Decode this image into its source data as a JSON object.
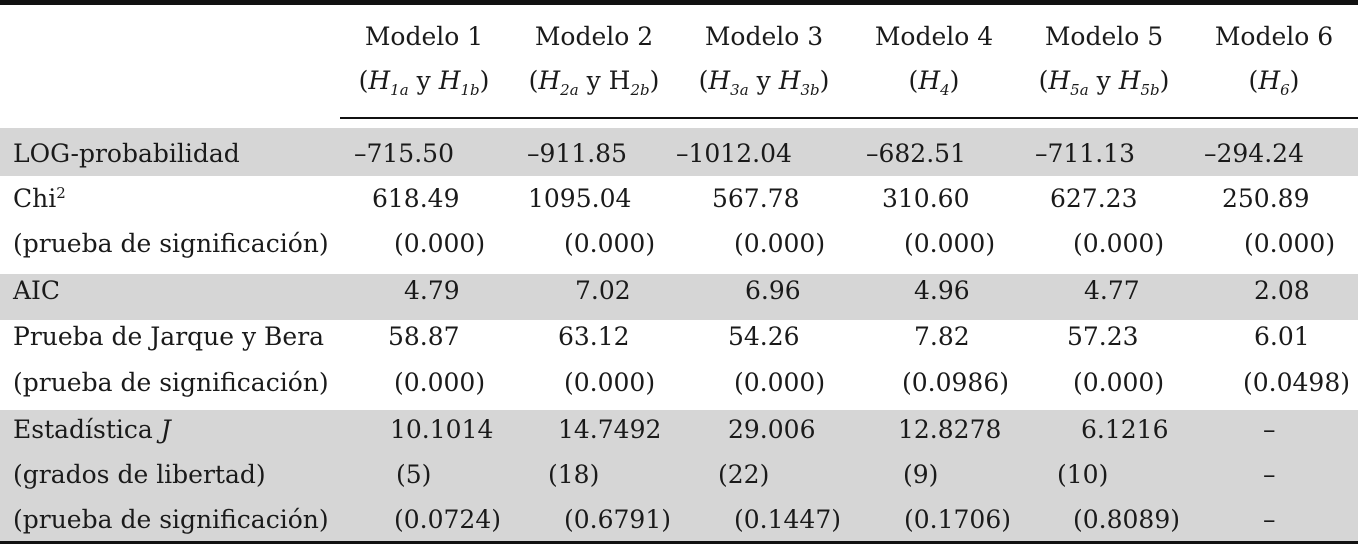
{
  "columns": [
    {
      "name": "Modelo 1",
      "hyp": "(H1a y H1b)"
    },
    {
      "name": "Modelo 2",
      "hyp": "(H2a y H2b)"
    },
    {
      "name": "Modelo 3",
      "hyp": "(H3a y H3b)"
    },
    {
      "name": "Modelo 4",
      "hyp": "(H4)"
    },
    {
      "name": "Modelo 5",
      "hyp": "(H5a y H5b)"
    },
    {
      "name": "Modelo 6",
      "hyp": "(H6)"
    }
  ],
  "rows": [
    {
      "label": "LOG-probabilidad",
      "values": [
        "–715.50",
        "–911.85",
        "–1012.04",
        "–682.51",
        "–711.13",
        "–294.24"
      ]
    },
    {
      "label": "Chi",
      "label_sup": "2",
      "values": [
        "618.49",
        "1095.04",
        "567.78",
        "310.60",
        "627.23",
        "250.89"
      ]
    },
    {
      "label": "(prueba de significación)",
      "values": [
        "(0.000)",
        "(0.000)",
        "(0.000)",
        "(0.000)",
        "(0.000)",
        "(0.000)"
      ]
    },
    {
      "label": "AIC",
      "values": [
        "4.79",
        "7.02",
        "6.96",
        "4.96",
        "4.77",
        "2.08"
      ]
    },
    {
      "label": "Prueba de Jarque y Bera",
      "values": [
        "58.87",
        "63.12",
        "54.26",
        "7.82",
        "57.23",
        "6.01"
      ]
    },
    {
      "label": "(prueba de significación)",
      "values": [
        "(0.000)",
        "(0.000)",
        "(0.000)",
        "(0.0986)",
        "(0.000)",
        "(0.0498)"
      ]
    },
    {
      "label": "Estadística ",
      "label_italic": "J",
      "values": [
        "10.1014",
        "14.7492",
        "29.006",
        "12.8278",
        "6.1216",
        "–"
      ]
    },
    {
      "label": "(grados de libertad)",
      "values": [
        "(5)",
        "(18)",
        "(22)",
        "(9)",
        "(10)",
        "–"
      ]
    },
    {
      "label": "(prueba de significación)",
      "values": [
        "(0.0724)",
        "(0.6791)",
        "(0.1447)",
        "(0.1706)",
        "(0.8089)",
        "–"
      ]
    }
  ],
  "colors": {
    "band": "#d6d6d6",
    "rule": "#111111",
    "text": "#1a1a1a"
  }
}
